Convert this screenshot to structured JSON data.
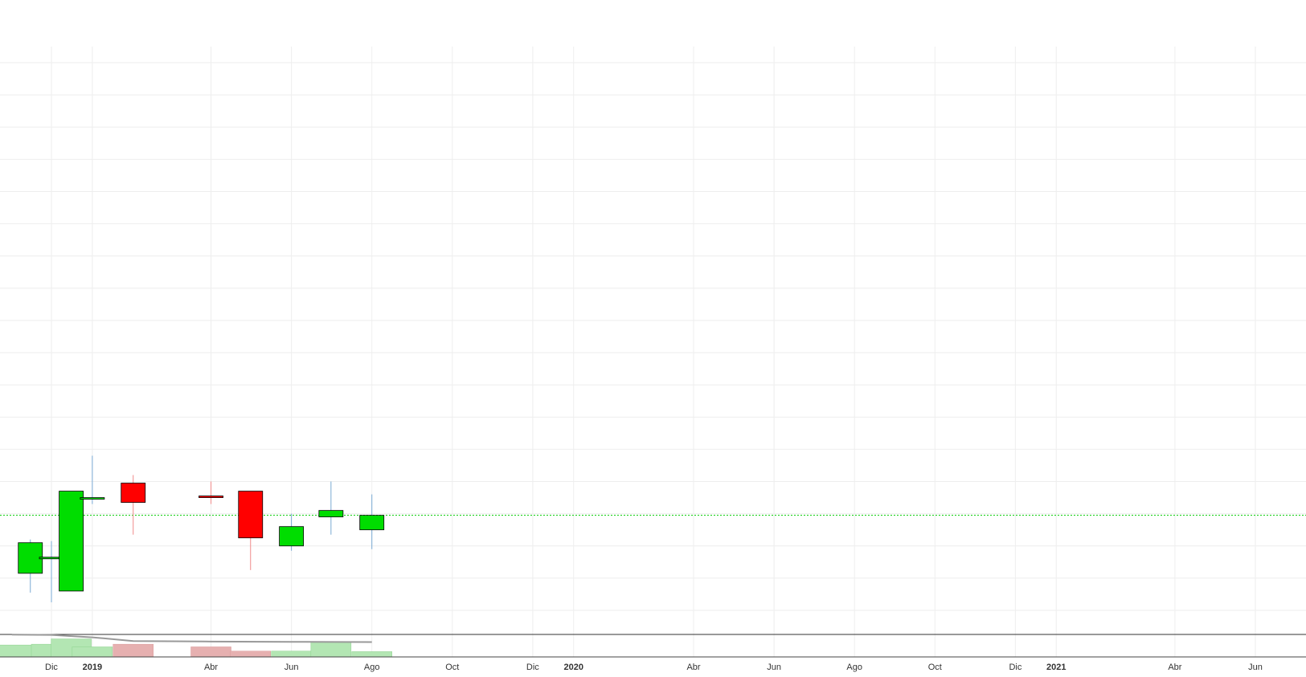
{
  "chart_data": {
    "type": "candlestick",
    "x_ticks": [
      {
        "date": "2018-12-01",
        "label": "Dic",
        "bold": false
      },
      {
        "date": "2019-01-01",
        "label": "2019",
        "bold": true
      },
      {
        "date": "2019-04-01",
        "label": "Abr",
        "bold": false
      },
      {
        "date": "2019-06-01",
        "label": "Jun",
        "bold": false
      },
      {
        "date": "2019-08-01",
        "label": "Ago",
        "bold": false
      },
      {
        "date": "2019-10-01",
        "label": "Oct",
        "bold": false
      },
      {
        "date": "2019-12-01",
        "label": "Dic",
        "bold": false
      },
      {
        "date": "2020-01-01",
        "label": "2020",
        "bold": true
      },
      {
        "date": "2020-04-01",
        "label": "Abr",
        "bold": false
      },
      {
        "date": "2020-06-01",
        "label": "Jun",
        "bold": false
      },
      {
        "date": "2020-08-01",
        "label": "Ago",
        "bold": false
      },
      {
        "date": "2020-10-01",
        "label": "Oct",
        "bold": false
      },
      {
        "date": "2020-12-01",
        "label": "Dic",
        "bold": false
      },
      {
        "date": "2021-01-01",
        "label": "2021",
        "bold": true
      },
      {
        "date": "2021-04-01",
        "label": "Abr",
        "bold": false
      },
      {
        "date": "2021-06-01",
        "label": "Jun",
        "bold": false
      }
    ],
    "xlim": [
      "2018-11-01",
      "2021-07-01"
    ],
    "ylim": [
      0,
      17.5
    ],
    "grid": true,
    "reference_line": {
      "value": 2.95,
      "color": "#00cc00",
      "style": "dotted"
    },
    "candles": [
      {
        "date": "2018-11-15",
        "open": 1.15,
        "high": 2.2,
        "low": 0.55,
        "close": 2.1,
        "direction": "up"
      },
      {
        "date": "2018-12-01",
        "open": 1.6,
        "high": 2.15,
        "low": 0.25,
        "close": 1.65,
        "direction": "up"
      },
      {
        "date": "2018-12-16",
        "open": 0.6,
        "high": 3.7,
        "low": 0.6,
        "close": 3.7,
        "direction": "up"
      },
      {
        "date": "2019-01-01",
        "open": 3.5,
        "high": 4.8,
        "low": 3.3,
        "close": 3.5,
        "direction": "up"
      },
      {
        "date": "2019-02-01",
        "open": 3.95,
        "high": 4.2,
        "low": 2.35,
        "close": 3.35,
        "direction": "down"
      },
      {
        "date": "2019-04-01",
        "open": 3.55,
        "high": 4.0,
        "low": 3.3,
        "close": 3.5,
        "direction": "down"
      },
      {
        "date": "2019-05-01",
        "open": 3.7,
        "high": 3.7,
        "low": 1.25,
        "close": 2.25,
        "direction": "down"
      },
      {
        "date": "2019-06-01",
        "open": 2.0,
        "high": 3.0,
        "low": 1.85,
        "close": 2.6,
        "direction": "up"
      },
      {
        "date": "2019-07-01",
        "open": 2.9,
        "high": 4.0,
        "low": 2.35,
        "close": 3.1,
        "direction": "up"
      },
      {
        "date": "2019-08-01",
        "open": 2.5,
        "high": 3.6,
        "low": 1.9,
        "close": 2.95,
        "direction": "up"
      }
    ],
    "volume": [
      {
        "date": "2018-11-01",
        "value": 0.45,
        "direction": "up"
      },
      {
        "date": "2018-12-01",
        "value": 0.48,
        "direction": "up"
      },
      {
        "date": "2018-12-16",
        "value": 0.68,
        "direction": "up"
      },
      {
        "date": "2019-01-01",
        "value": 0.38,
        "direction": "up"
      },
      {
        "date": "2019-02-01",
        "value": 0.48,
        "direction": "down"
      },
      {
        "date": "2019-04-01",
        "value": 0.38,
        "direction": "down"
      },
      {
        "date": "2019-05-01",
        "value": 0.22,
        "direction": "down"
      },
      {
        "date": "2019-06-01",
        "value": 0.22,
        "direction": "up"
      },
      {
        "date": "2019-07-01",
        "value": 0.56,
        "direction": "up"
      },
      {
        "date": "2019-08-01",
        "value": 0.2,
        "direction": "up"
      }
    ],
    "volume_ma": [
      {
        "date": "2018-11-01",
        "value": 0.84
      },
      {
        "date": "2018-12-01",
        "value": 0.83
      },
      {
        "date": "2019-01-01",
        "value": 0.74
      },
      {
        "date": "2019-02-01",
        "value": 0.6
      },
      {
        "date": "2019-04-01",
        "value": 0.58
      },
      {
        "date": "2019-06-01",
        "value": 0.57
      },
      {
        "date": "2019-08-01",
        "value": 0.56
      }
    ],
    "colors": {
      "up": "#00dd00",
      "down": "#ff0000",
      "up_wick": "#7aaad4",
      "down_wick": "#f08a8a",
      "volume_up": "#b3e6b3",
      "volume_down": "#e6b0b0",
      "volume_ma": "#999999",
      "grid": "#eeeeee"
    }
  }
}
